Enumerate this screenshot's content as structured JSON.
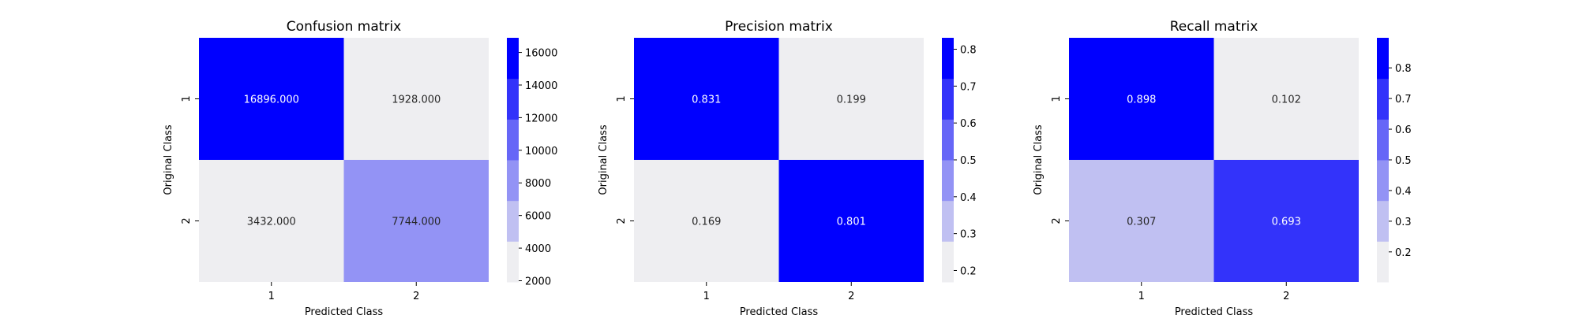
{
  "chart_data": [
    {
      "type": "heatmap",
      "title": "Confusion matrix",
      "xlabel": "Predicted Class",
      "ylabel": "Original Class",
      "x_categories": [
        "1",
        "2"
      ],
      "y_categories": [
        "1",
        "2"
      ],
      "values": [
        [
          16896.0,
          1928.0
        ],
        [
          3432.0,
          7744.0
        ]
      ],
      "value_labels": [
        [
          "16896.000",
          "1928.000"
        ],
        [
          "3432.000",
          "7744.000"
        ]
      ],
      "colorbar": {
        "range": [
          1928,
          16896
        ],
        "ticks": [
          2000,
          4000,
          6000,
          8000,
          10000,
          12000,
          14000,
          16000
        ],
        "tick_labels": [
          "2000",
          "4000",
          "6000",
          "8000",
          "10000",
          "12000",
          "14000",
          "16000"
        ]
      }
    },
    {
      "type": "heatmap",
      "title": "Precision matrix",
      "xlabel": "Predicted Class",
      "ylabel": "Original Class",
      "x_categories": [
        "1",
        "2"
      ],
      "y_categories": [
        "1",
        "2"
      ],
      "values": [
        [
          0.831,
          0.199
        ],
        [
          0.169,
          0.801
        ]
      ],
      "value_labels": [
        [
          "0.831",
          "0.199"
        ],
        [
          "0.169",
          "0.801"
        ]
      ],
      "colorbar": {
        "range": [
          0.169,
          0.831
        ],
        "ticks": [
          0.2,
          0.3,
          0.4,
          0.5,
          0.6,
          0.7,
          0.8
        ],
        "tick_labels": [
          "0.2",
          "0.3",
          "0.4",
          "0.5",
          "0.6",
          "0.7",
          "0.8"
        ]
      }
    },
    {
      "type": "heatmap",
      "title": "Recall matrix",
      "xlabel": "Predicted Class",
      "ylabel": "Original Class",
      "x_categories": [
        "1",
        "2"
      ],
      "y_categories": [
        "1",
        "2"
      ],
      "values": [
        [
          0.898,
          0.102
        ],
        [
          0.307,
          0.693
        ]
      ],
      "value_labels": [
        [
          "0.898",
          "0.102"
        ],
        [
          "0.307",
          "0.693"
        ]
      ],
      "colorbar": {
        "range": [
          0.102,
          0.898
        ],
        "ticks": [
          0.2,
          0.3,
          0.4,
          0.5,
          0.6,
          0.7,
          0.8
        ],
        "tick_labels": [
          "0.2",
          "0.3",
          "0.4",
          "0.5",
          "0.6",
          "0.7",
          "0.8"
        ]
      }
    }
  ],
  "colormap": {
    "name": "light-to-blue discrete",
    "levels": [
      "#eeeef1",
      "#c0c0f2",
      "#9393f5",
      "#6666f7",
      "#3333fa",
      "#0000ff"
    ]
  }
}
